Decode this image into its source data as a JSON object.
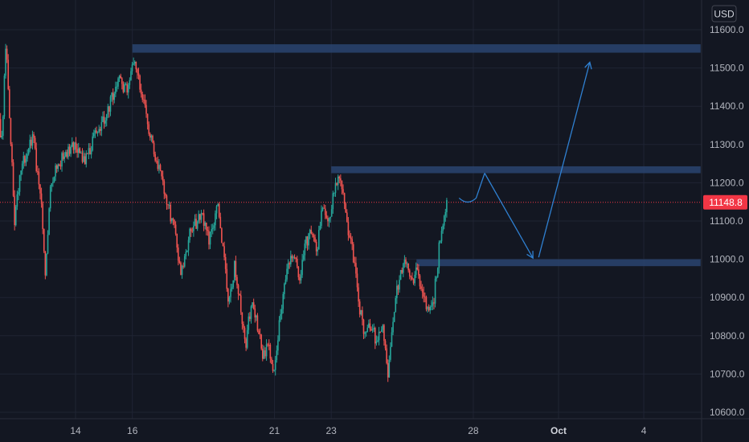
{
  "chart_data": {
    "type": "candlestick",
    "currency": "USD",
    "ylim": [
      10580,
      11640
    ],
    "yticks": [
      10600,
      10700,
      10800,
      10900,
      11000,
      11100,
      11200,
      11300,
      11400,
      11500,
      11600
    ],
    "ytick_labels": [
      "10600.0",
      "10700.0",
      "10800.0",
      "10900.0",
      "11000.0",
      "11100.0",
      "11200.0",
      "11300.0",
      "11400.0",
      "11500.0",
      "11600.0"
    ],
    "xlim": [
      "Sep 11",
      "Oct 6"
    ],
    "xticks": [
      {
        "date": "Sep 14",
        "label": "14",
        "bold": false
      },
      {
        "date": "Sep 16",
        "label": "16",
        "bold": false
      },
      {
        "date": "Sep 21",
        "label": "21",
        "bold": false
      },
      {
        "date": "Sep 23",
        "label": "23",
        "bold": false
      },
      {
        "date": "Sep 28",
        "label": "28",
        "bold": false
      },
      {
        "date": "Oct 1",
        "label": "Oct",
        "bold": true
      },
      {
        "date": "Oct 4",
        "label": "4",
        "bold": false
      }
    ],
    "last_price": 11148.8,
    "last_price_label": "11148.8",
    "price_path": [
      {
        "d": 11.0,
        "p": 11380
      },
      {
        "d": 11.2,
        "p": 11450
      },
      {
        "d": 11.4,
        "p": 11300
      },
      {
        "d": 11.55,
        "p": 11560
      },
      {
        "d": 11.7,
        "p": 11350
      },
      {
        "d": 11.85,
        "p": 11100
      },
      {
        "d": 12.1,
        "p": 11250
      },
      {
        "d": 12.5,
        "p": 11320
      },
      {
        "d": 12.8,
        "p": 11140
      },
      {
        "d": 12.95,
        "p": 10950
      },
      {
        "d": 13.1,
        "p": 11200
      },
      {
        "d": 13.5,
        "p": 11260
      },
      {
        "d": 13.9,
        "p": 11300
      },
      {
        "d": 14.3,
        "p": 11250
      },
      {
        "d": 14.7,
        "p": 11330
      },
      {
        "d": 15.1,
        "p": 11380
      },
      {
        "d": 15.5,
        "p": 11470
      },
      {
        "d": 15.8,
        "p": 11440
      },
      {
        "d": 16.05,
        "p": 11520
      },
      {
        "d": 16.3,
        "p": 11450
      },
      {
        "d": 16.6,
        "p": 11330
      },
      {
        "d": 16.9,
        "p": 11250
      },
      {
        "d": 17.2,
        "p": 11150
      },
      {
        "d": 17.5,
        "p": 11080
      },
      {
        "d": 17.7,
        "p": 10960
      },
      {
        "d": 18.0,
        "p": 11060
      },
      {
        "d": 18.4,
        "p": 11120
      },
      {
        "d": 18.7,
        "p": 11050
      },
      {
        "d": 19.0,
        "p": 11140
      },
      {
        "d": 19.2,
        "p": 11020
      },
      {
        "d": 19.4,
        "p": 10880
      },
      {
        "d": 19.6,
        "p": 10980
      },
      {
        "d": 19.8,
        "p": 10880
      },
      {
        "d": 20.0,
        "p": 10780
      },
      {
        "d": 20.2,
        "p": 10900
      },
      {
        "d": 20.4,
        "p": 10830
      },
      {
        "d": 20.6,
        "p": 10740
      },
      {
        "d": 20.8,
        "p": 10780
      },
      {
        "d": 21.0,
        "p": 10700
      },
      {
        "d": 21.2,
        "p": 10860
      },
      {
        "d": 21.4,
        "p": 10950
      },
      {
        "d": 21.6,
        "p": 11020
      },
      {
        "d": 21.9,
        "p": 10960
      },
      {
        "d": 22.1,
        "p": 11040
      },
      {
        "d": 22.3,
        "p": 11080
      },
      {
        "d": 22.5,
        "p": 11020
      },
      {
        "d": 22.7,
        "p": 11150
      },
      {
        "d": 22.9,
        "p": 11100
      },
      {
        "d": 23.1,
        "p": 11170
      },
      {
        "d": 23.25,
        "p": 11220
      },
      {
        "d": 23.45,
        "p": 11150
      },
      {
        "d": 23.6,
        "p": 11080
      },
      {
        "d": 23.8,
        "p": 11000
      },
      {
        "d": 24.0,
        "p": 10870
      },
      {
        "d": 24.2,
        "p": 10800
      },
      {
        "d": 24.4,
        "p": 10830
      },
      {
        "d": 24.6,
        "p": 10780
      },
      {
        "d": 24.8,
        "p": 10830
      },
      {
        "d": 25.0,
        "p": 10700
      },
      {
        "d": 25.2,
        "p": 10860
      },
      {
        "d": 25.4,
        "p": 10960
      },
      {
        "d": 25.6,
        "p": 10990
      },
      {
        "d": 25.8,
        "p": 10940
      },
      {
        "d": 26.0,
        "p": 10970
      },
      {
        "d": 26.2,
        "p": 10920
      },
      {
        "d": 26.4,
        "p": 10860
      },
      {
        "d": 26.6,
        "p": 10890
      },
      {
        "d": 26.8,
        "p": 11030
      },
      {
        "d": 27.0,
        "p": 11120
      },
      {
        "d": 27.1,
        "p": 11150
      }
    ],
    "zones": [
      {
        "name": "upper-resistance-zone",
        "from": "Sep 16",
        "to": "Oct 6",
        "top": 11562,
        "bottom": 11540
      },
      {
        "name": "middle-resistance-zone",
        "from": "Sep 23",
        "to": "Oct 6",
        "top": 11243,
        "bottom": 11225
      },
      {
        "name": "support-zone",
        "from": "Sep 26",
        "to": "Oct 6",
        "top": 11000,
        "bottom": 10982
      }
    ],
    "projection": [
      {
        "d": 27.5,
        "p": 11160
      },
      {
        "d": 28.1,
        "p": 11160
      },
      {
        "d": 28.4,
        "p": 11225
      },
      {
        "d": 30.1,
        "p": 11003
      },
      {
        "d": 30.3,
        "p": 11005
      },
      {
        "d": 32.1,
        "p": 11515
      }
    ],
    "colors": {
      "background": "#131722",
      "grid": "#1f2433",
      "up": "#26a69a",
      "down": "#ef5350",
      "zone": "#2a4470",
      "projection": "#2f80d1",
      "price_tag": "#f23645",
      "axis_text": "#b2b5be"
    }
  }
}
